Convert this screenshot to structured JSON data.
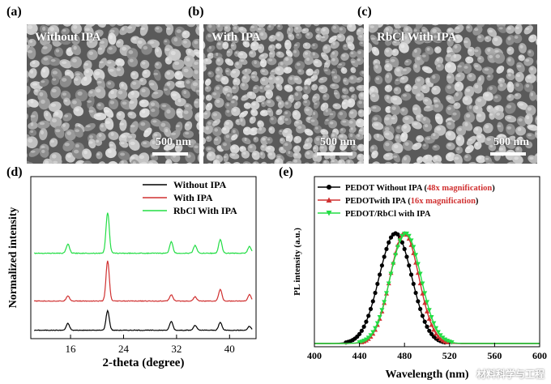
{
  "labels": {
    "a": "(a)",
    "b": "(b)",
    "c": "(c)",
    "d": "(d)",
    "e": "(e)"
  },
  "sem": [
    {
      "title": "Without IPA",
      "scale": "500 nm"
    },
    {
      "title": "With IPA",
      "scale": "500 nm"
    },
    {
      "title": "RbCl With IPA",
      "scale": "500 nm"
    }
  ],
  "watermark": "材料科学与工程",
  "chart_data": [
    {
      "type": "line",
      "title": "",
      "xlabel": "2-theta (degree)",
      "ylabel": "Normalized intensity",
      "xlim": [
        10,
        44
      ],
      "xticks": [
        16,
        24,
        32,
        40
      ],
      "yticks_shown": false,
      "legend": [
        "Without IPA",
        "With IPA",
        "RbCl With IPA"
      ],
      "series": [
        {
          "name": "Without IPA",
          "color": "#000000",
          "offset": 0,
          "peaks": [
            [
              15.6,
              0.35
            ],
            [
              21.6,
              1.0
            ],
            [
              31.2,
              0.45
            ],
            [
              34.8,
              0.25
            ],
            [
              38.6,
              0.4
            ],
            [
              43.0,
              0.2
            ]
          ]
        },
        {
          "name": "With IPA",
          "color": "#d03030",
          "offset": 1,
          "peaks": [
            [
              15.6,
              0.25
            ],
            [
              21.6,
              1.9
            ],
            [
              31.2,
              0.3
            ],
            [
              34.8,
              0.2
            ],
            [
              38.6,
              0.55
            ],
            [
              43.0,
              0.3
            ]
          ]
        },
        {
          "name": "RbCl With IPA",
          "color": "#22dd44",
          "offset": 2,
          "peaks": [
            [
              15.6,
              0.4
            ],
            [
              21.6,
              1.8
            ],
            [
              31.2,
              0.5
            ],
            [
              34.8,
              0.35
            ],
            [
              38.6,
              0.6
            ],
            [
              43.0,
              0.3
            ]
          ]
        }
      ]
    },
    {
      "type": "line",
      "title": "",
      "xlabel": "Wavelength (nm)",
      "ylabel": "PL intensity (a.u.)",
      "xlim": [
        400,
        600
      ],
      "xticks": [
        400,
        440,
        480,
        520,
        560,
        600
      ],
      "legend": [
        {
          "prefix": "PEDOT Without IPA (",
          "mag": "48x magnification",
          "suffix": ")"
        },
        {
          "prefix": "PEDOTwith IPA (",
          "mag": "16x magnification",
          "suffix": ")"
        },
        {
          "prefix": "PEDOT/RbCl with IPA",
          "mag": "",
          "suffix": ""
        }
      ],
      "series": [
        {
          "name": "PEDOT Without IPA",
          "color": "#000000",
          "marker": "circle",
          "center": 472,
          "fwhm": 34
        },
        {
          "name": "PEDOTwith IPA",
          "color": "#d03030",
          "marker": "triangle-up",
          "center": 480,
          "fwhm": 30
        },
        {
          "name": "PEDOT/RbCl with IPA",
          "color": "#22dd44",
          "marker": "triangle-down",
          "center": 481,
          "fwhm": 32
        }
      ]
    }
  ]
}
